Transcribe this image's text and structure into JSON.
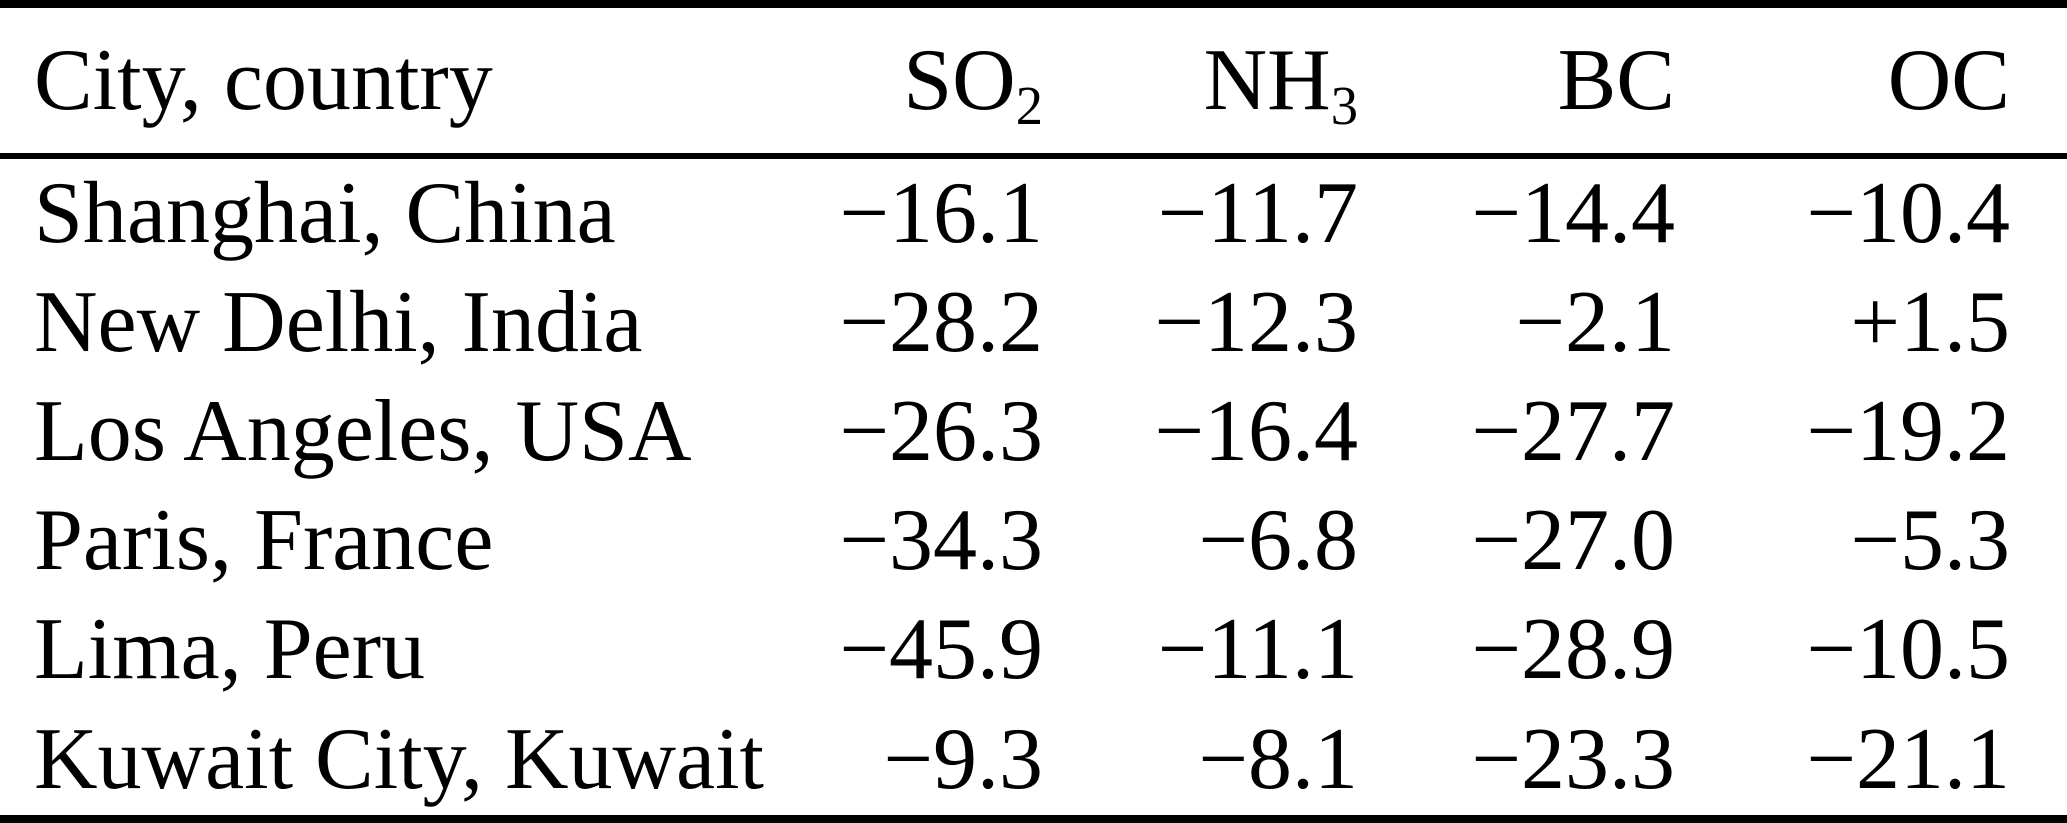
{
  "page": {
    "background_color": "#ffffff",
    "text_color": "#000000",
    "rule_color": "#000000"
  },
  "table": {
    "header": {
      "city_label": "City, country",
      "columns": [
        {
          "base": "SO",
          "sub": "2"
        },
        {
          "base": "NH",
          "sub": "3"
        },
        {
          "base": "BC",
          "sub": ""
        },
        {
          "base": "OC",
          "sub": ""
        }
      ]
    },
    "rows": [
      {
        "city": "Shanghai, China",
        "so2": "−16.1",
        "nh3": "−11.7",
        "bc": "−14.4",
        "oc": "−10.4"
      },
      {
        "city": "New Delhi, India",
        "so2": "−28.2",
        "nh3": "−12.3",
        "bc": "−2.1",
        "oc": "+1.5"
      },
      {
        "city": "Los Angeles, USA",
        "so2": "−26.3",
        "nh3": "−16.4",
        "bc": "−27.7",
        "oc": "−19.2"
      },
      {
        "city": "Paris, France",
        "so2": "−34.3",
        "nh3": "−6.8",
        "bc": "−27.0",
        "oc": "−5.3"
      },
      {
        "city": "Lima, Peru",
        "so2": "−45.9",
        "nh3": "−11.1",
        "bc": "−28.9",
        "oc": "−10.5"
      },
      {
        "city": "Kuwait City, Kuwait",
        "so2": "−9.3",
        "nh3": "−8.1",
        "bc": "−23.3",
        "oc": "−21.1"
      }
    ]
  },
  "chart_data": {
    "type": "table",
    "columns": [
      "City, country",
      "SO2",
      "NH3",
      "BC",
      "OC"
    ],
    "rows": [
      [
        "Shanghai, China",
        -16.1,
        -11.7,
        -14.4,
        -10.4
      ],
      [
        "New Delhi, India",
        -28.2,
        -12.3,
        -2.1,
        1.5
      ],
      [
        "Los Angeles, USA",
        -26.3,
        -16.4,
        -27.7,
        -19.2
      ],
      [
        "Paris, France",
        -34.3,
        -6.8,
        -27.0,
        -5.3
      ],
      [
        "Lima, Peru",
        -45.9,
        -11.1,
        -28.9,
        -10.5
      ],
      [
        "Kuwait City, Kuwait",
        -9.3,
        -8.1,
        -23.3,
        -21.1
      ]
    ]
  }
}
